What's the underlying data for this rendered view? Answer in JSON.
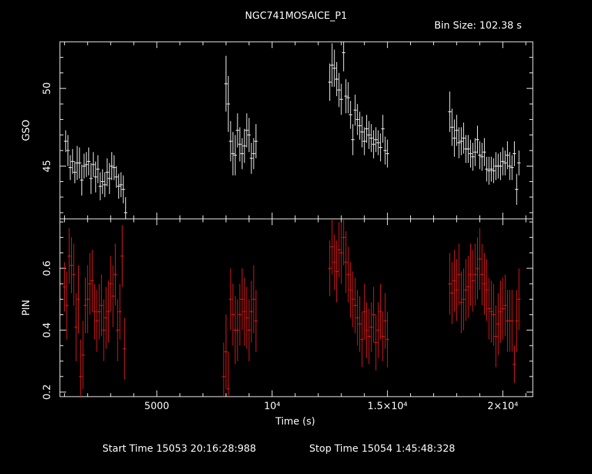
{
  "header": {
    "title": "NGC741MOSAICE_P1",
    "bin_size": "Bin Size: 102.38 s"
  },
  "footer": {
    "start_time": "Start Time 15053 20:16:28:988",
    "stop_time": "Stop Time 15054 1:45:48:328"
  },
  "colors": {
    "gso": "#ffffff",
    "pin": "#e61a1a",
    "axes": "#ffffff",
    "background": "#000000"
  },
  "chart_data": [
    {
      "type": "scatter",
      "ylabel": "GSO",
      "xlim": [
        800,
        21300
      ],
      "ylim": [
        41.6,
        53.0
      ],
      "yticks": [
        {
          "v": 45,
          "label": "45"
        },
        {
          "v": 50,
          "label": "50"
        }
      ],
      "series": [
        {
          "x": [
            1050,
            1150,
            1250,
            1350,
            1450,
            1550,
            1650,
            1750,
            1850,
            1950,
            2050,
            2150,
            2250,
            2350,
            2450,
            2550,
            2650,
            2750,
            2850,
            2950,
            3050,
            3150,
            3250,
            3350,
            3450,
            3550,
            3650,
            8000,
            8100,
            8200,
            8300,
            8400,
            8500,
            8600,
            8700,
            8800,
            8900,
            9000,
            9100,
            9200,
            9300,
            12500,
            12600,
            12700,
            12800,
            12900,
            13000,
            13100,
            13200,
            13300,
            13400,
            13500,
            13600,
            13700,
            13800,
            13900,
            14000,
            14100,
            14200,
            14300,
            14400,
            14500,
            14600,
            14700,
            14800,
            14900,
            15000,
            17700,
            17800,
            17900,
            18000,
            18100,
            18200,
            18300,
            18400,
            18500,
            18600,
            18700,
            18800,
            18900,
            19000,
            19100,
            19200,
            19300,
            19400,
            19500,
            19600,
            19700,
            19800,
            19900,
            20000,
            20100,
            20200,
            20300,
            20400,
            20500,
            20600,
            20700
          ],
          "y": [
            46.6,
            46.0,
            44.9,
            45.3,
            44.6,
            45.2,
            45.2,
            44.1,
            45.0,
            45.1,
            45.3,
            44.2,
            45.1,
            44.3,
            44.8,
            43.7,
            44.0,
            43.8,
            44.6,
            44.2,
            45.0,
            44.9,
            44.3,
            43.7,
            43.8,
            43.5,
            42.0,
            50.3,
            49.0,
            46.6,
            45.8,
            45.7,
            47.3,
            46.4,
            45.8,
            46.3,
            47.3,
            47.0,
            45.5,
            45.8,
            46.6,
            50.4,
            51.5,
            51.3,
            50.6,
            49.9,
            49.3,
            52.3,
            49.5,
            49.4,
            48.3,
            46.7,
            48.6,
            48.0,
            47.6,
            47.2,
            46.6,
            47.4,
            47.0,
            46.8,
            46.4,
            46.7,
            46.5,
            46.2,
            47.4,
            46.0,
            45.8,
            48.5,
            47.5,
            46.8,
            47.3,
            46.5,
            46.6,
            46.8,
            46.1,
            46.1,
            45.8,
            45.6,
            45.9,
            46.7,
            45.7,
            45.6,
            45.9,
            44.8,
            44.7,
            44.8,
            44.7,
            45.0,
            45.0,
            45.0,
            45.3,
            45.2,
            45.7,
            45.0,
            44.9,
            45.8,
            43.5,
            45.2
          ],
          "yerr": [
            0.7,
            1.0,
            0.8,
            0.8,
            0.7,
            1.1,
            1.0,
            1.0,
            0.8,
            0.8,
            0.9,
            1.0,
            0.8,
            1.0,
            0.9,
            0.9,
            0.8,
            0.8,
            0.9,
            1.0,
            0.9,
            0.8,
            0.7,
            0.8,
            0.8,
            0.9,
            1.0,
            1.8,
            1.8,
            1.3,
            1.4,
            1.3,
            1.1,
            1.1,
            1.0,
            1.1,
            1.1,
            1.1,
            1.0,
            1.0,
            1.1,
            1.2,
            1.4,
            1.2,
            1.1,
            1.1,
            1.0,
            1.2,
            1.1,
            1.0,
            0.9,
            1.0,
            1.0,
            1.0,
            0.9,
            1.0,
            0.9,
            0.9,
            0.9,
            0.9,
            0.9,
            0.8,
            0.8,
            0.9,
            0.9,
            0.9,
            0.9,
            1.3,
            1.2,
            1.2,
            1.0,
            1.0,
            0.9,
            1.0,
            0.9,
            0.9,
            0.9,
            0.9,
            0.9,
            0.9,
            0.9,
            0.9,
            0.9,
            0.8,
            0.9,
            0.8,
            0.8,
            0.9,
            0.8,
            0.9,
            0.9,
            0.8,
            0.9,
            0.9,
            0.8,
            0.8,
            1.0,
            0.8
          ]
        }
      ]
    },
    {
      "type": "scatter",
      "xlabel": "Time (s)",
      "ylabel": "PIN",
      "xlim": [
        800,
        21300
      ],
      "ylim": [
        0.185,
        0.76
      ],
      "xticks": [
        {
          "v": 5000,
          "label": "5000"
        },
        {
          "v": 10000,
          "label": "10⁴"
        },
        {
          "v": 15000,
          "label": "1.5×10⁴"
        },
        {
          "v": 20000,
          "label": "2×10⁴"
        }
      ],
      "yticks": [
        {
          "v": 0.2,
          "label": "0.2"
        },
        {
          "v": 0.4,
          "label": "0.4"
        },
        {
          "v": 0.6,
          "label": "0.6"
        }
      ],
      "series": [
        {
          "x": [
            1000,
            1100,
            1200,
            1300,
            1400,
            1500,
            1600,
            1700,
            1800,
            1900,
            2000,
            2100,
            2200,
            2300,
            2400,
            2500,
            2600,
            2700,
            2800,
            2900,
            3000,
            3100,
            3200,
            3300,
            3400,
            3500,
            3600,
            7900,
            8000,
            8100,
            8200,
            8300,
            8400,
            8500,
            8600,
            8700,
            8800,
            8900,
            9000,
            9100,
            9200,
            9300,
            12500,
            12600,
            12700,
            12800,
            12900,
            13000,
            13100,
            13200,
            13300,
            13400,
            13500,
            13600,
            13700,
            13800,
            13900,
            14000,
            14100,
            14200,
            14300,
            14400,
            14500,
            14600,
            14700,
            14800,
            14900,
            15000,
            17700,
            17800,
            17900,
            18000,
            18100,
            18200,
            18300,
            18400,
            18500,
            18600,
            18700,
            18800,
            18900,
            19000,
            19100,
            19200,
            19300,
            19400,
            19500,
            19600,
            19700,
            19800,
            19900,
            20000,
            20100,
            20200,
            20300,
            20400,
            20500,
            20600,
            20700
          ],
          "y": [
            0.54,
            0.48,
            0.64,
            0.61,
            0.58,
            0.41,
            0.5,
            0.25,
            0.32,
            0.48,
            0.5,
            0.55,
            0.56,
            0.46,
            0.43,
            0.46,
            0.48,
            0.4,
            0.44,
            0.46,
            0.55,
            0.51,
            0.58,
            0.4,
            0.46,
            0.64,
            0.34,
            0.25,
            0.33,
            0.21,
            0.5,
            0.45,
            0.4,
            0.4,
            0.45,
            0.5,
            0.46,
            0.44,
            0.4,
            0.46,
            0.5,
            0.43,
            0.6,
            0.67,
            0.62,
            0.59,
            0.66,
            0.65,
            0.7,
            0.62,
            0.58,
            0.53,
            0.5,
            0.48,
            0.44,
            0.42,
            0.37,
            0.46,
            0.4,
            0.38,
            0.41,
            0.45,
            0.36,
            0.4,
            0.46,
            0.38,
            0.43,
            0.37,
            0.55,
            0.52,
            0.56,
            0.53,
            0.58,
            0.49,
            0.5,
            0.53,
            0.54,
            0.58,
            0.56,
            0.58,
            0.6,
            0.63,
            0.58,
            0.55,
            0.53,
            0.47,
            0.46,
            0.45,
            0.38,
            0.42,
            0.46,
            0.47,
            0.48,
            0.43,
            0.43,
            0.43,
            0.29,
            0.43,
            0.5
          ],
          "yerr": [
            0.08,
            0.11,
            0.09,
            0.09,
            0.1,
            0.11,
            0.11,
            0.12,
            0.11,
            0.09,
            0.11,
            0.1,
            0.1,
            0.09,
            0.1,
            0.09,
            0.1,
            0.1,
            0.1,
            0.1,
            0.09,
            0.1,
            0.1,
            0.1,
            0.09,
            0.1,
            0.1,
            0.11,
            0.12,
            0.12,
            0.1,
            0.1,
            0.11,
            0.1,
            0.1,
            0.1,
            0.11,
            0.1,
            0.1,
            0.1,
            0.11,
            0.1,
            0.09,
            0.09,
            0.09,
            0.1,
            0.09,
            0.1,
            0.09,
            0.1,
            0.09,
            0.09,
            0.09,
            0.09,
            0.09,
            0.09,
            0.09,
            0.09,
            0.09,
            0.09,
            0.08,
            0.09,
            0.09,
            0.09,
            0.09,
            0.08,
            0.09,
            0.09,
            0.1,
            0.1,
            0.1,
            0.1,
            0.1,
            0.1,
            0.1,
            0.1,
            0.1,
            0.1,
            0.1,
            0.1,
            0.1,
            0.1,
            0.1,
            0.1,
            0.1,
            0.1,
            0.1,
            0.1,
            0.1,
            0.1,
            0.1,
            0.1,
            0.1,
            0.1,
            0.1,
            0.1,
            0.06,
            0.1,
            0.1
          ]
        }
      ]
    }
  ]
}
